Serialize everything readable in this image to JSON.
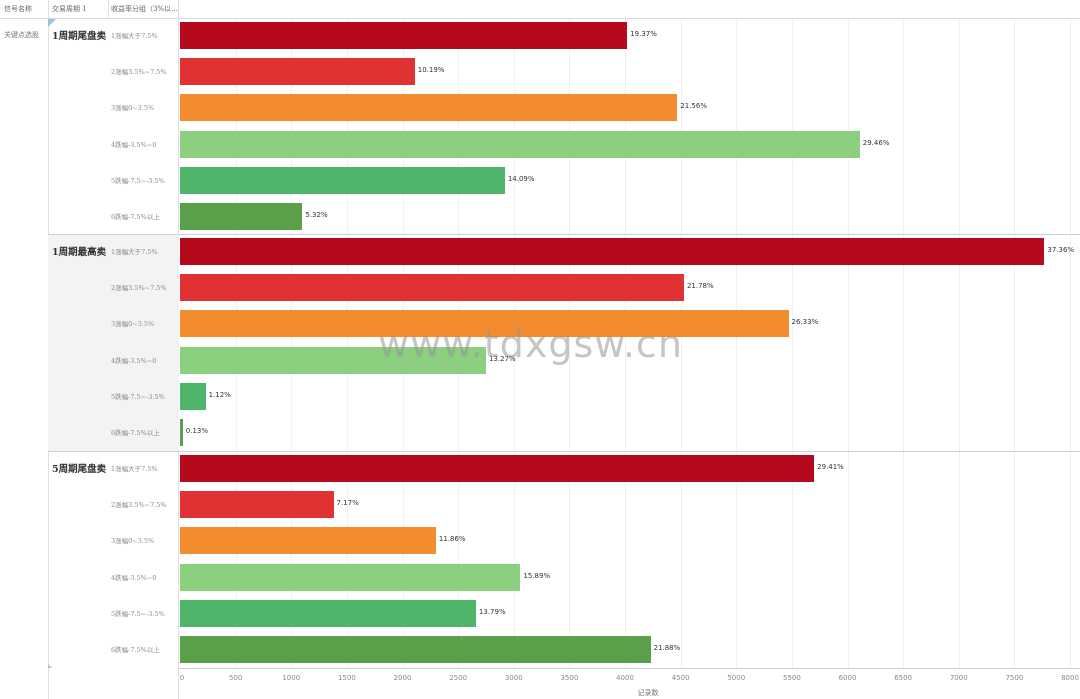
{
  "headers": {
    "signal_col": "信号名称",
    "period_col": "交易周期 1",
    "range_col": "收益率分组（3%以..."
  },
  "signal_name": "关键点选股",
  "watermark": "www.tdxgsw.cn",
  "colors": {
    "cat1": "#b5091e",
    "cat2": "#e03232",
    "cat3": "#f28c2e",
    "cat4": "#8cd07f",
    "cat5": "#4fb56a",
    "cat6": "#5b9f4b"
  },
  "chart_data": {
    "type": "bar",
    "orientation": "horizontal",
    "xlabel": "记录数",
    "xlim": [
      0,
      8000
    ],
    "xticks": [
      0,
      500,
      1000,
      1500,
      2000,
      2500,
      3000,
      3500,
      4000,
      4500,
      5000,
      5500,
      6000,
      6500,
      7000,
      7500,
      8000
    ],
    "categories": [
      "1涨幅大于7.5%",
      "2涨幅3.5%~7.5%",
      "3涨幅0~3.5%",
      "4跌幅-3.5%~0",
      "5跌幅-7.5~-3.5%",
      "6跌幅-7.5%以上"
    ],
    "panels": [
      {
        "name": "1周期尾盘卖",
        "values": [
          4020,
          2110,
          4470,
          6110,
          2920,
          1100
        ],
        "labels": [
          "19.37%",
          "10.19%",
          "21.56%",
          "29.46%",
          "14.09%",
          "5.32%"
        ]
      },
      {
        "name": "1周期最高卖",
        "values": [
          7770,
          4530,
          5470,
          2750,
          230,
          25
        ],
        "labels": [
          "37.36%",
          "21.78%",
          "26.33%",
          "13.27%",
          "1.12%",
          "0.13%"
        ]
      },
      {
        "name": "5周期尾盘卖",
        "values": [
          5700,
          1380,
          2300,
          3060,
          2660,
          4230
        ],
        "labels": [
          "29.41%",
          "7.17%",
          "11.86%",
          "15.89%",
          "13.79%",
          "21.88%"
        ]
      }
    ]
  }
}
